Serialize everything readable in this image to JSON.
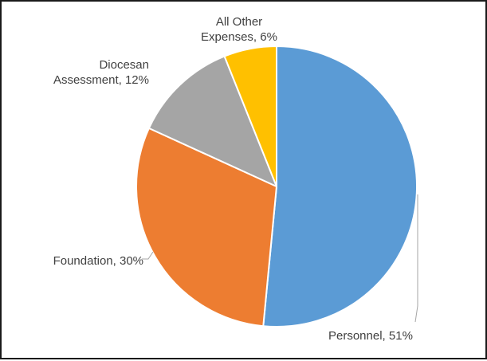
{
  "chart_data": {
    "type": "pie",
    "start_angle_deg": 0,
    "direction": "clockwise",
    "slices": [
      {
        "label": "Personnel",
        "value": 51,
        "value_label": "51%",
        "color": "#5B9BD5"
      },
      {
        "label": "Foundation",
        "value": 30,
        "value_label": "30%",
        "color": "#ED7D31"
      },
      {
        "label": "Diocesan Assessment",
        "value": 12,
        "value_label": "12%",
        "color": "#A5A5A5"
      },
      {
        "label": "All Other Expenses",
        "value": 6,
        "value_label": "6%",
        "color": "#FFC000"
      }
    ],
    "data_labels": [
      {
        "lines": [
          "Personnel, 51%"
        ]
      },
      {
        "lines": [
          "Foundation, 30%"
        ]
      },
      {
        "lines": [
          "Diocesan",
          "Assessment, 12%"
        ]
      },
      {
        "lines": [
          "All Other",
          "Expenses, 6%"
        ]
      }
    ],
    "title": "",
    "legend": "none"
  }
}
